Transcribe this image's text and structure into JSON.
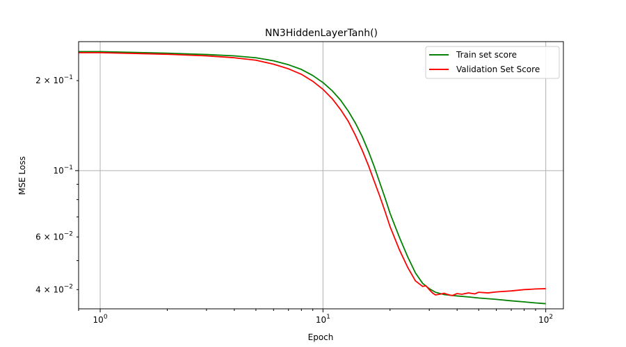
{
  "chart_data": {
    "type": "line",
    "title": "NN3HiddenLayerTanh()",
    "xlabel": "Epoch",
    "ylabel": "MSE Loss",
    "xscale": "log",
    "yscale": "log",
    "xlim": [
      0.8,
      120
    ],
    "ylim": [
      0.0345,
      0.27
    ],
    "grid": true,
    "legend_position": "top-right",
    "x_ticks": [
      {
        "value": 1,
        "base": "10",
        "exp": "0"
      },
      {
        "value": 10,
        "base": "10",
        "exp": "1"
      },
      {
        "value": 100,
        "base": "10",
        "exp": "2"
      }
    ],
    "y_ticks": [
      {
        "value": 0.04,
        "mant": "4",
        "exp": "−2"
      },
      {
        "value": 0.06,
        "mant": "6",
        "exp": "−2"
      },
      {
        "value": 0.1,
        "mant": "",
        "exp": "−1"
      },
      {
        "value": 0.2,
        "mant": "2",
        "exp": "−1"
      }
    ],
    "series": [
      {
        "name": "Train set score",
        "color": "#008000",
        "points": [
          [
            0.8,
            0.25
          ],
          [
            1,
            0.25
          ],
          [
            2,
            0.247
          ],
          [
            3,
            0.2445
          ],
          [
            4,
            0.242
          ],
          [
            5,
            0.2385
          ],
          [
            6,
            0.233
          ],
          [
            7,
            0.226
          ],
          [
            8,
            0.218
          ],
          [
            9,
            0.208
          ],
          [
            10,
            0.197
          ],
          [
            11,
            0.185
          ],
          [
            12,
            0.172
          ],
          [
            13,
            0.158
          ],
          [
            14,
            0.144
          ],
          [
            15,
            0.13
          ],
          [
            16,
            0.116
          ],
          [
            17,
            0.103
          ],
          [
            18,
            0.091
          ],
          [
            19,
            0.081
          ],
          [
            20,
            0.072
          ],
          [
            22,
            0.06
          ],
          [
            24,
            0.0515
          ],
          [
            26,
            0.0455
          ],
          [
            28,
            0.042
          ],
          [
            30,
            0.0403
          ],
          [
            32,
            0.0392
          ],
          [
            35,
            0.0385
          ],
          [
            40,
            0.0381
          ],
          [
            45,
            0.0378
          ],
          [
            50,
            0.0375
          ],
          [
            60,
            0.0371
          ],
          [
            70,
            0.0367
          ],
          [
            80,
            0.0364
          ],
          [
            90,
            0.0361
          ],
          [
            100,
            0.0359
          ]
        ]
      },
      {
        "name": "Validation Set Score",
        "color": "#ff0000",
        "points": [
          [
            0.8,
            0.248
          ],
          [
            1,
            0.248
          ],
          [
            2,
            0.245
          ],
          [
            3,
            0.242
          ],
          [
            4,
            0.2385
          ],
          [
            5,
            0.234
          ],
          [
            6,
            0.227
          ],
          [
            7,
            0.219
          ],
          [
            8,
            0.21
          ],
          [
            9,
            0.199
          ],
          [
            10,
            0.187
          ],
          [
            11,
            0.174
          ],
          [
            12,
            0.16
          ],
          [
            13,
            0.146
          ],
          [
            14,
            0.131
          ],
          [
            15,
            0.117
          ],
          [
            16,
            0.104
          ],
          [
            17,
            0.092
          ],
          [
            18,
            0.082
          ],
          [
            19,
            0.073
          ],
          [
            20,
            0.065
          ],
          [
            22,
            0.0545
          ],
          [
            24,
            0.0475
          ],
          [
            26,
            0.0428
          ],
          [
            28,
            0.041
          ],
          [
            29,
            0.0412
          ],
          [
            30,
            0.04
          ],
          [
            31,
            0.039
          ],
          [
            32,
            0.0384
          ],
          [
            34,
            0.0387
          ],
          [
            35,
            0.0389
          ],
          [
            36,
            0.0386
          ],
          [
            38,
            0.0382
          ],
          [
            40,
            0.0388
          ],
          [
            42,
            0.0386
          ],
          [
            45,
            0.039
          ],
          [
            48,
            0.0387
          ],
          [
            50,
            0.0392
          ],
          [
            55,
            0.039
          ],
          [
            60,
            0.0393
          ],
          [
            70,
            0.0396
          ],
          [
            80,
            0.04
          ],
          [
            90,
            0.0402
          ],
          [
            100,
            0.0403
          ]
        ]
      }
    ]
  }
}
